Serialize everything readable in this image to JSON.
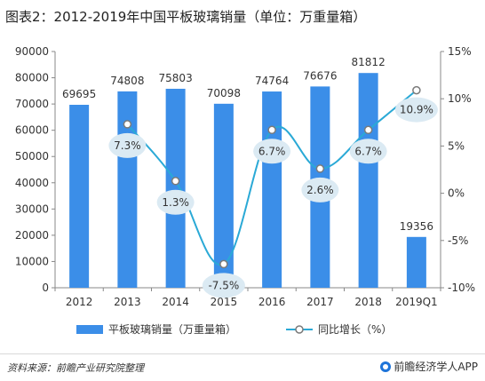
{
  "title": "图表2：2012-2019年中国平板玻璃销量（单位：万重量箱）",
  "source": "资料来源：前瞻产业研究院整理",
  "brand": "前瞻经济学人APP",
  "colors": {
    "bar": "#3b8ee8",
    "line": "#2aa9d6",
    "bubble": "#dbeaf3",
    "axis": "#888888",
    "text": "#333333"
  },
  "chart_data": {
    "type": "bar",
    "categories": [
      "2012",
      "2013",
      "2014",
      "2015",
      "2016",
      "2017",
      "2018",
      "2019Q1"
    ],
    "series": [
      {
        "name": "平板玻璃销量（万重量箱）",
        "type": "bar",
        "axis": "left",
        "values": [
          69695,
          74808,
          75803,
          70098,
          74764,
          76676,
          81812,
          19356
        ],
        "labels": [
          "69695",
          "74808",
          "75803",
          "70098",
          "74764",
          "76676",
          "81812",
          "19356"
        ]
      },
      {
        "name": "同比增长（%）",
        "type": "line",
        "axis": "right",
        "values": [
          null,
          7.3,
          1.3,
          -7.5,
          6.7,
          2.6,
          6.7,
          10.9
        ],
        "labels": [
          "",
          "7.3%",
          "1.3%",
          "-7.5%",
          "6.7%",
          "2.6%",
          "6.7%",
          "10.9%"
        ]
      }
    ],
    "ylim": [
      0,
      90000
    ],
    "yticks": [
      "0",
      "10000",
      "20000",
      "30000",
      "40000",
      "50000",
      "60000",
      "70000",
      "80000",
      "90000"
    ],
    "y2lim": [
      -10,
      15
    ],
    "y2ticks": [
      "-10%",
      "-5%",
      "0%",
      "5%",
      "10%",
      "15%"
    ],
    "legend": [
      "平板玻璃销量（万重量箱）",
      "同比增长（%）"
    ],
    "legend_position": "bottom"
  }
}
